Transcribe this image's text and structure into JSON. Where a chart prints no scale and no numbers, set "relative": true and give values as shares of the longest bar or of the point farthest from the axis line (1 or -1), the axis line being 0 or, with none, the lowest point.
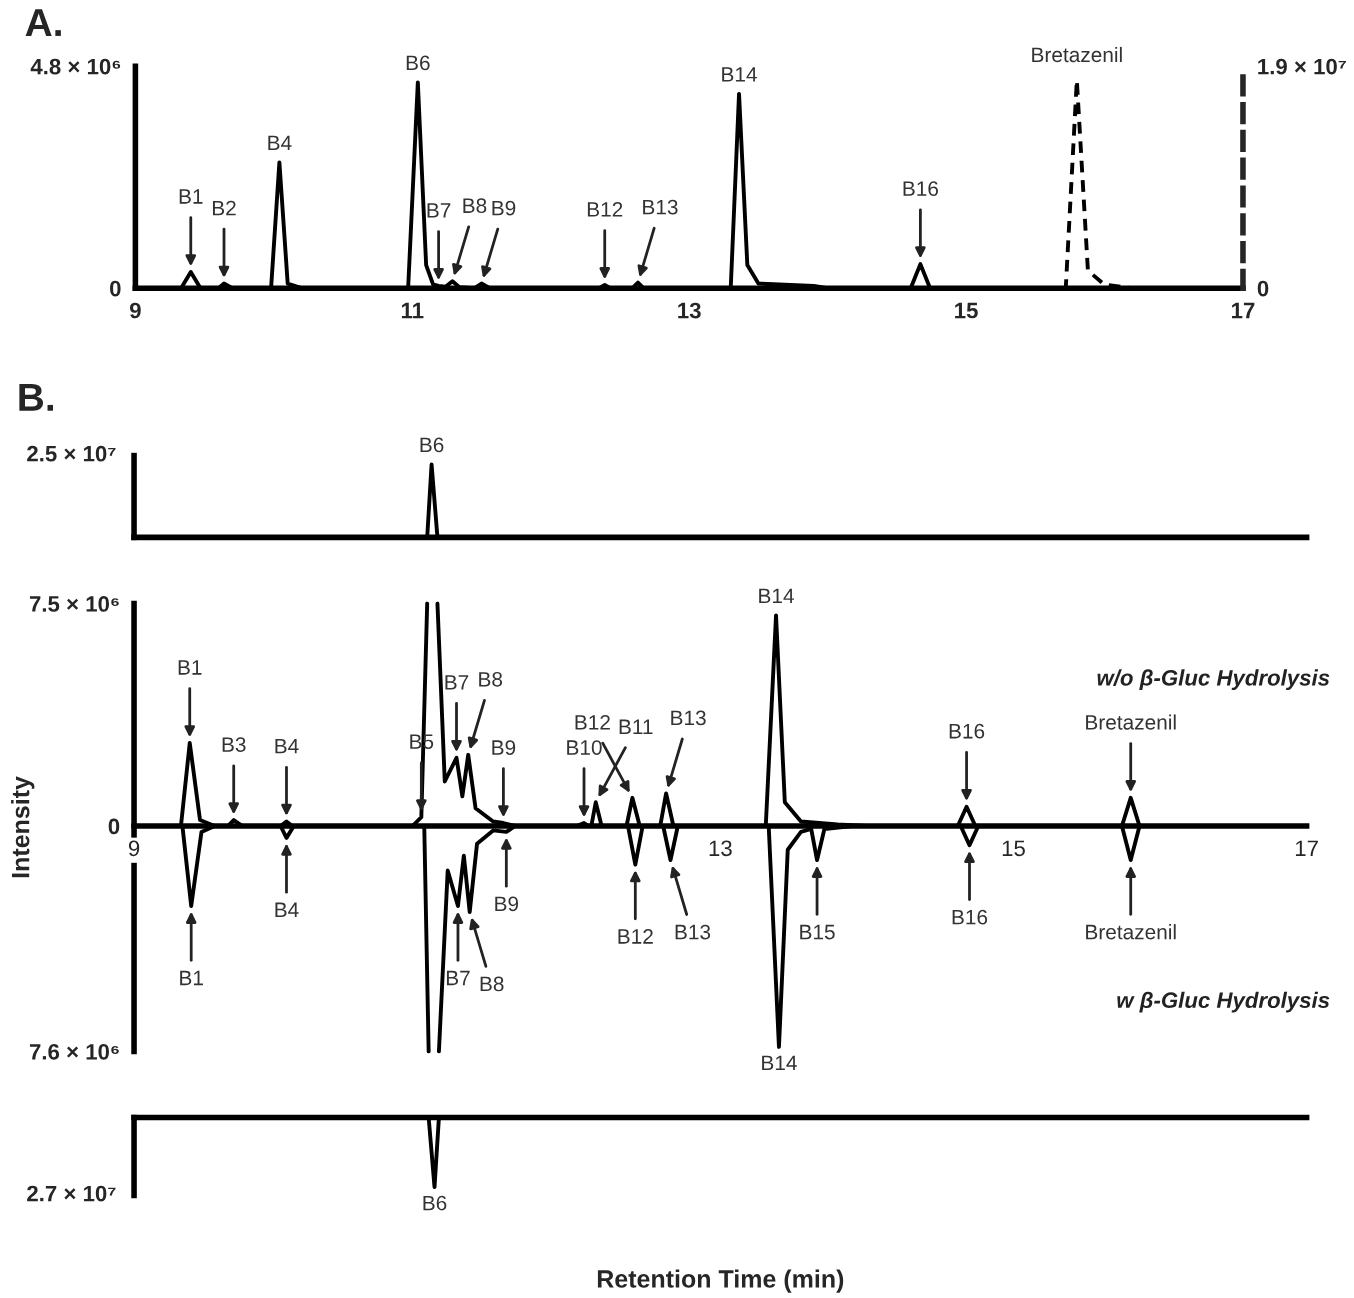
{
  "chart_data": [
    {
      "type": "line",
      "title": "A.",
      "xlim": [
        9,
        17
      ],
      "xticks": [
        9,
        11,
        13,
        15,
        17
      ],
      "ylim": [
        0,
        4800000
      ],
      "yticks": [
        0,
        {
          "value": 4800000,
          "label": "4.8 × 10⁶"
        }
      ],
      "y2lim": [
        0,
        19000000
      ],
      "y2ticks": [
        0,
        {
          "value": 19000000,
          "label": "1.9 × 10⁷"
        }
      ],
      "grid": false,
      "legend": false,
      "series": [
        {
          "color": "#000000",
          "line_style": "solid",
          "x": [
            9.0,
            9.33,
            9.4,
            9.47,
            9.6,
            9.64,
            9.7,
            9.98,
            10.04,
            10.1,
            10.2,
            10.97,
            11.04,
            11.1,
            11.15,
            11.19,
            11.24,
            11.29,
            11.34,
            11.45,
            11.5,
            11.56,
            12.35,
            12.39,
            12.43,
            12.59,
            12.63,
            12.67,
            13.3,
            13.36,
            13.42,
            13.5,
            13.9,
            14.0,
            14.6,
            14.67,
            14.74,
            17.0
          ],
          "values": [
            0,
            0,
            350000,
            0,
            0,
            100000,
            0,
            0,
            2720000,
            100000,
            0,
            0,
            4450000,
            500000,
            80000,
            50000,
            30000,
            150000,
            20000,
            0,
            100000,
            0,
            0,
            70000,
            0,
            0,
            120000,
            0,
            0,
            4200000,
            500000,
            100000,
            50000,
            0,
            0,
            520000,
            0,
            0
          ]
        },
        {
          "name": "Bretazenil",
          "color": "#000000",
          "line_style": "dashed",
          "axis": "y2",
          "x": [
            15.7,
            15.72,
            15.8,
            15.88,
            16.0,
            16.2
          ],
          "values": [
            0,
            0,
            17800000,
            1500000,
            300000,
            0
          ]
        }
      ],
      "annotations": [
        {
          "text": "B1",
          "x": 9.4,
          "y": 350000
        },
        {
          "text": "B2",
          "x": 9.64,
          "y": 100000
        },
        {
          "text": "B4",
          "x": 10.04,
          "y": 2720000
        },
        {
          "text": "B6",
          "x": 11.04,
          "y": 4450000
        },
        {
          "text": "B7",
          "x": 11.19,
          "y": 50000
        },
        {
          "text": "B8",
          "x": 11.29,
          "y": 150000
        },
        {
          "text": "B9",
          "x": 11.5,
          "y": 100000
        },
        {
          "text": "B12",
          "x": 12.39,
          "y": 70000
        },
        {
          "text": "B13",
          "x": 12.63,
          "y": 120000
        },
        {
          "text": "B14",
          "x": 13.36,
          "y": 4200000
        },
        {
          "text": "B16",
          "x": 14.67,
          "y": 520000
        }
      ]
    },
    {
      "type": "line",
      "title": "B.",
      "relative": true,
      "xlim": [
        9,
        17
      ],
      "grid": false,
      "series": [
        {
          "color": "#000000",
          "line_style": "solid",
          "x": [
            11.0,
            11.03,
            11.07
          ],
          "values": [
            0,
            1,
            0
          ]
        }
      ],
      "annotations": [
        "2.5 × 10⁷",
        {
          "text": "B6",
          "x": 11.03,
          "y": 1
        }
      ]
    },
    {
      "type": "line",
      "ylabel": "Intensity",
      "xlim": [
        9,
        17
      ],
      "xticks": [
        9,
        13,
        15,
        17
      ],
      "ylim": [
        -7600000,
        7500000
      ],
      "yticks": [
        {
          "value": -7600000,
          "label": "7.6 × 10⁶"
        },
        0,
        {
          "value": 7500000,
          "label": "7.5 × 10⁶"
        }
      ],
      "grid": false,
      "series": [
        {
          "color": "#000000",
          "line_style": "solid",
          "x": [
            9.0,
            9.32,
            9.38,
            9.45,
            9.55,
            9.64,
            9.68,
            9.74,
            10.0,
            10.04,
            10.08,
            10.9,
            10.96,
            11.0,
            11.035,
            11.07,
            11.12,
            11.2,
            11.24,
            11.28,
            11.33,
            11.45,
            11.52,
            11.6,
            12.02,
            12.07,
            12.1,
            12.12,
            12.15,
            12.19,
            12.36,
            12.4,
            12.45,
            12.59,
            12.63,
            12.68,
            13.31,
            13.38,
            13.44,
            13.55,
            13.8,
            14.0,
            14.62,
            14.68,
            14.74,
            15.74,
            15.8,
            15.86,
            17.0
          ],
          "values": [
            0,
            0,
            2800000,
            200000,
            0,
            0,
            200000,
            0,
            0,
            150000,
            0,
            0,
            300000,
            7500000,
            null,
            7500000,
            1500000,
            2300000,
            1000000,
            2400000,
            600000,
            150000,
            100000,
            0,
            0,
            100000,
            0,
            0,
            800000,
            0,
            0,
            950000,
            0,
            0,
            1100000,
            0,
            0,
            7100000,
            800000,
            150000,
            50000,
            0,
            0,
            650000,
            0,
            0,
            950000,
            0,
            0
          ]
        },
        {
          "color": "#000000",
          "line_style": "solid",
          "x": [
            9.0,
            9.33,
            9.39,
            9.46,
            9.55,
            10.0,
            10.04,
            10.09,
            10.98,
            11.01,
            11.045,
            11.08,
            11.14,
            11.21,
            11.25,
            11.29,
            11.34,
            11.45,
            11.54,
            11.6,
            12.37,
            12.42,
            12.47,
            12.61,
            12.66,
            12.71,
            13.33,
            13.4,
            13.46,
            13.55,
            13.62,
            13.66,
            13.71,
            13.9,
            14.64,
            14.7,
            14.76,
            15.74,
            15.8,
            15.86,
            17.0
          ],
          "values": [
            0,
            0,
            -2700000,
            -200000,
            0,
            0,
            -400000,
            0,
            0,
            -7600000,
            null,
            -7600000,
            -1500000,
            -2700000,
            -1000000,
            -2900000,
            -600000,
            -150000,
            -200000,
            0,
            0,
            -1300000,
            0,
            0,
            -1150000,
            0,
            0,
            -7450000,
            -800000,
            -200000,
            -100000,
            -1150000,
            -100000,
            0,
            0,
            -650000,
            0,
            0,
            -1150000,
            0,
            0
          ]
        }
      ],
      "annotations": [
        {
          "text": "B1",
          "x": 9.38,
          "y": 2800000
        },
        {
          "text": "B3",
          "x": 9.68,
          "y": 200000
        },
        {
          "text": "B4",
          "x": 10.04,
          "y": 150000
        },
        {
          "text": "B5",
          "x": 10.96,
          "y": 300000
        },
        {
          "text": "B7",
          "x": 11.2,
          "y": 2300000
        },
        {
          "text": "B8",
          "x": 11.28,
          "y": 2400000
        },
        {
          "text": "B9",
          "x": 11.52,
          "y": 100000
        },
        {
          "text": "B10",
          "x": 12.07,
          "y": 100000
        },
        {
          "text": "B11",
          "x": 12.15,
          "y": 800000
        },
        {
          "text": "B12",
          "x": 12.4,
          "y": 950000
        },
        {
          "text": "B13",
          "x": 12.63,
          "y": 1100000
        },
        {
          "text": "B14",
          "x": 13.38,
          "y": 7100000
        },
        {
          "text": "B16",
          "x": 14.68,
          "y": 650000
        },
        {
          "text": "Bretazenil",
          "x": 15.8,
          "y": 950000
        },
        {
          "text": "B1",
          "x": 9.39,
          "y": -2700000
        },
        {
          "text": "B4",
          "x": 10.04,
          "y": -400000
        },
        {
          "text": "B7",
          "x": 11.21,
          "y": -2700000
        },
        {
          "text": "B8",
          "x": 11.29,
          "y": -2900000
        },
        {
          "text": "B9",
          "x": 11.54,
          "y": -200000
        },
        {
          "text": "B12",
          "x": 12.42,
          "y": -1300000
        },
        {
          "text": "B13",
          "x": 12.66,
          "y": -1150000
        },
        {
          "text": "B14",
          "x": 13.4,
          "y": -7450000
        },
        {
          "text": "B15",
          "x": 13.66,
          "y": -1150000
        },
        {
          "text": "B16",
          "x": 14.7,
          "y": -650000
        },
        {
          "text": "Bretazenil",
          "x": 15.8,
          "y": -1150000
        },
        "w/o β-Gluc Hydrolysis",
        "w β-Gluc Hydrolysis"
      ]
    },
    {
      "type": "line",
      "relative": true,
      "xlabel": "Retention Time (min)",
      "xlim": [
        9,
        17
      ],
      "grid": false,
      "series": [
        {
          "color": "#000000",
          "line_style": "solid",
          "x": [
            11.01,
            11.05,
            11.08
          ],
          "values": [
            0,
            -1,
            0
          ]
        }
      ],
      "annotations": [
        "2.7 × 10⁷",
        {
          "text": "B6",
          "x": 11.05,
          "y": -1
        }
      ]
    }
  ]
}
